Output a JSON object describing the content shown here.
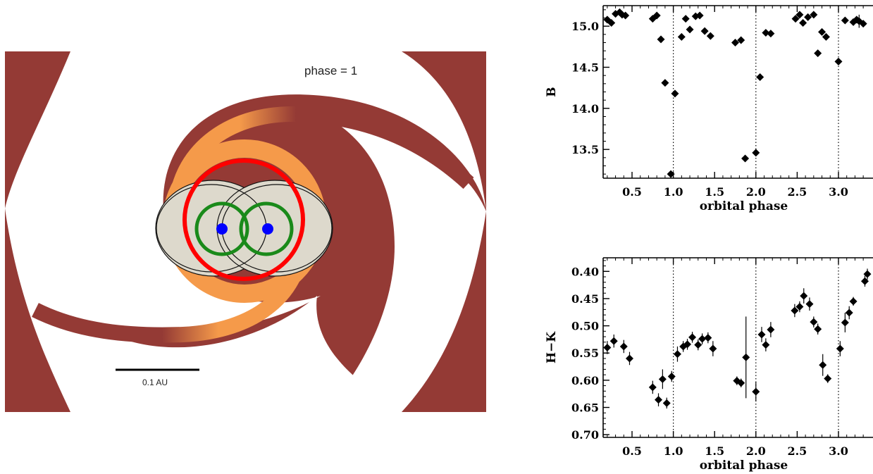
{
  "diagram": {
    "phase_label": "phase = 1",
    "scale_bar_label": "0.1 AU",
    "colors": {
      "outer_stream": "#943a35",
      "inner_stream": "#f59a4a",
      "circumbinary_ring": "#ff0000",
      "roche_lobes": "#1a8a1a",
      "stars": "#0000ff",
      "lobe_fill": "#ddd9cc",
      "outline": "#111111"
    }
  },
  "chart_data": [
    {
      "type": "scatter",
      "xlabel": "orbital phase",
      "ylabel": "B",
      "xlim": [
        0.15,
        3.35
      ],
      "ylim": [
        15.25,
        13.15
      ],
      "y_inverted": true,
      "xticks": [
        "0.5",
        "1.0",
        "1.5",
        "2.0",
        "2.5",
        "3.0"
      ],
      "yticks": [
        "13.5",
        "14.0",
        "14.5",
        "15.0"
      ],
      "xtick_values": [
        0.5,
        1.0,
        1.5,
        2.0,
        2.5,
        3.0
      ],
      "ytick_values": [
        13.5,
        14.0,
        14.5,
        15.0
      ],
      "vlines": [
        1.0,
        2.0,
        3.0
      ],
      "marker": "diamond",
      "points": [
        [
          0.2,
          15.08
        ],
        [
          0.25,
          15.04
        ],
        [
          0.3,
          15.15
        ],
        [
          0.35,
          15.17
        ],
        [
          0.38,
          15.14
        ],
        [
          0.42,
          15.13
        ],
        [
          0.75,
          15.09
        ],
        [
          0.8,
          15.13
        ],
        [
          0.85,
          14.84
        ],
        [
          0.9,
          14.31
        ],
        [
          0.97,
          13.2
        ],
        [
          1.02,
          14.18
        ],
        [
          1.1,
          14.87
        ],
        [
          1.15,
          15.09
        ],
        [
          1.2,
          14.96
        ],
        [
          1.27,
          15.12
        ],
        [
          1.32,
          15.13
        ],
        [
          1.38,
          14.94
        ],
        [
          1.45,
          14.88
        ],
        [
          1.75,
          14.8
        ],
        [
          1.82,
          14.83
        ],
        [
          1.87,
          13.39
        ],
        [
          2.0,
          13.46
        ],
        [
          2.05,
          14.38
        ],
        [
          2.12,
          14.92
        ],
        [
          2.18,
          14.91
        ],
        [
          2.48,
          15.09
        ],
        [
          2.53,
          15.14
        ],
        [
          2.57,
          15.04
        ],
        [
          2.63,
          15.11
        ],
        [
          2.7,
          15.14
        ],
        [
          2.75,
          14.67
        ],
        [
          2.8,
          14.93
        ],
        [
          2.85,
          14.87
        ],
        [
          3.0,
          14.57
        ],
        [
          3.08,
          15.07
        ],
        [
          3.18,
          15.05
        ],
        [
          3.22,
          15.08
        ],
        [
          3.25,
          15.06
        ],
        [
          3.3,
          15.03
        ]
      ],
      "errors": [
        [
          3.25,
          0.08
        ]
      ]
    },
    {
      "type": "scatter",
      "xlabel": "orbital phase",
      "ylabel": "H−K",
      "xlim": [
        0.15,
        3.35
      ],
      "ylim": [
        0.375,
        0.705
      ],
      "xticks": [
        "0.5",
        "1.0",
        "1.5",
        "2.0",
        "2.5",
        "3.0"
      ],
      "yticks": [
        "0.40",
        "0.45",
        "0.50",
        "0.55",
        "0.60",
        "0.65",
        "0.70"
      ],
      "xtick_values": [
        0.5,
        1.0,
        1.5,
        2.0,
        2.5,
        3.0
      ],
      "ytick_values": [
        0.4,
        0.45,
        0.5,
        0.55,
        0.6,
        0.65,
        0.7
      ],
      "vlines": [
        1.0,
        2.0,
        3.0
      ],
      "marker": "diamond",
      "points": [
        [
          0.2,
          0.54,
          0.012
        ],
        [
          0.28,
          0.528,
          0.012
        ],
        [
          0.4,
          0.538,
          0.012
        ],
        [
          0.47,
          0.56,
          0.012
        ],
        [
          0.75,
          0.613,
          0.012
        ],
        [
          0.82,
          0.636,
          0.012
        ],
        [
          0.87,
          0.598,
          0.018
        ],
        [
          0.92,
          0.642,
          0.01
        ],
        [
          0.98,
          0.593,
          0.01
        ],
        [
          1.05,
          0.552,
          0.014
        ],
        [
          1.12,
          0.538,
          0.01
        ],
        [
          1.17,
          0.534,
          0.01
        ],
        [
          1.23,
          0.521,
          0.01
        ],
        [
          1.3,
          0.535,
          0.01
        ],
        [
          1.35,
          0.524,
          0.01
        ],
        [
          1.42,
          0.522,
          0.01
        ],
        [
          1.48,
          0.542,
          0.014
        ],
        [
          1.77,
          0.601,
          0.008
        ],
        [
          1.82,
          0.605,
          0.008
        ],
        [
          1.88,
          0.558,
          0.075
        ],
        [
          2.0,
          0.621,
          0.018
        ],
        [
          2.07,
          0.516,
          0.014
        ],
        [
          2.12,
          0.535,
          0.012
        ],
        [
          2.18,
          0.507,
          0.014
        ],
        [
          2.47,
          0.472,
          0.012
        ],
        [
          2.53,
          0.465,
          0.01
        ],
        [
          2.58,
          0.445,
          0.014
        ],
        [
          2.65,
          0.46,
          0.012
        ],
        [
          2.7,
          0.493,
          0.01
        ],
        [
          2.75,
          0.506,
          0.01
        ],
        [
          2.81,
          0.572,
          0.02
        ],
        [
          2.87,
          0.597,
          0.008
        ],
        [
          3.02,
          0.542,
          0.014
        ],
        [
          3.08,
          0.494,
          0.018
        ],
        [
          3.13,
          0.476,
          0.012
        ],
        [
          3.18,
          0.455,
          0.008
        ],
        [
          3.32,
          0.418,
          0.01
        ],
        [
          3.35,
          0.405,
          0.01
        ]
      ]
    }
  ]
}
